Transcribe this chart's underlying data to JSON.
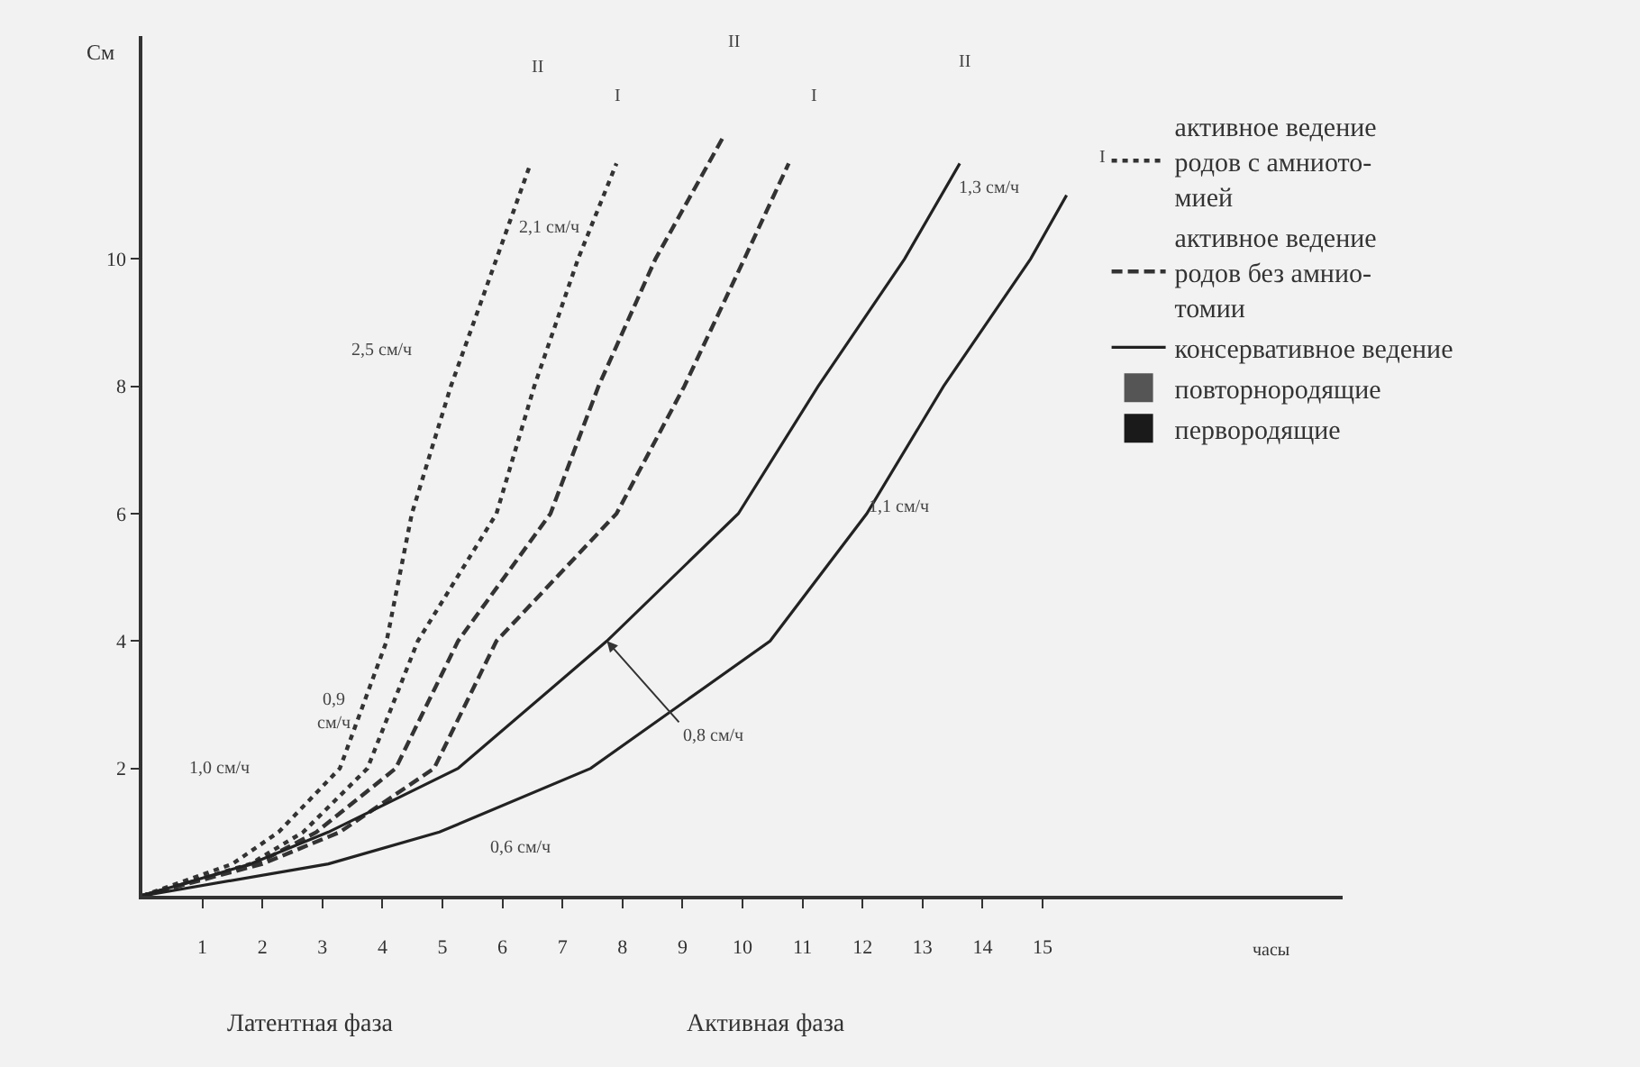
{
  "chart_data": {
    "type": "line",
    "xlabel": "часы",
    "ylabel": "См",
    "xlim": [
      0,
      20
    ],
    "ylim": [
      0,
      13.5
    ],
    "xticks": [
      1,
      2,
      3,
      4,
      5,
      6,
      7,
      8,
      9,
      10,
      11,
      12,
      13,
      14,
      15
    ],
    "yticks": [
      2,
      4,
      6,
      8,
      10
    ],
    "grid": false,
    "legend": "top right",
    "marker": "none",
    "series": [
      {
        "name": "активное ведение\nродов с амниото-\nмией",
        "color": "#333333",
        "line_style": "dotted",
        "x": [
          0,
          1.5,
          2.27,
          3.29,
          4.07,
          4.49,
          5.14,
          5.9,
          6.45
        ],
        "values": [
          0,
          0.5,
          1,
          2,
          4,
          6,
          8,
          10,
          11.45
        ]
      },
      {
        "color": "#333333",
        "line_style": "dotted",
        "x": [
          0,
          1.8,
          2.68,
          3.75,
          4.59,
          5.9,
          6.53,
          7.26,
          7.9
        ],
        "values": [
          0,
          0.5,
          1,
          2,
          4,
          6,
          8,
          10,
          11.5
        ]
      },
      {
        "name": "активное ведение\nродов без амнио-\nтомии",
        "color": "#333333",
        "line_style": "dashed",
        "x": [
          0,
          1.9,
          2.9,
          4.22,
          5.26,
          6.8,
          7.6,
          8.55,
          9.67
        ],
        "values": [
          0,
          0.5,
          1,
          2,
          4,
          6,
          8,
          10,
          11.9
        ]
      },
      {
        "color": "#333333",
        "line_style": "dashed",
        "x": [
          0,
          2.0,
          3.29,
          4.86,
          5.9,
          7.9,
          9.03,
          10.03,
          10.77
        ],
        "values": [
          0,
          0.5,
          1,
          2,
          4,
          6,
          8,
          10,
          11.5
        ]
      },
      {
        "name": "консервативное ведение",
        "color": "#222222",
        "line_style": "solid",
        "x": [
          0,
          1.8,
          3.1,
          5.26,
          7.74,
          9.93,
          11.26,
          12.7,
          13.62
        ],
        "values": [
          0,
          0.5,
          1,
          2,
          4,
          6,
          8,
          10,
          11.5
        ]
      },
      {
        "color": "#222222",
        "line_style": "solid",
        "x": [
          0,
          3.1,
          4.95,
          7.47,
          10.46,
          12.07,
          13.35,
          14.8,
          15.4
        ],
        "values": [
          0,
          0.5,
          1,
          2,
          4,
          6,
          8,
          10,
          11.0
        ]
      },
      {
        "name": "повторнородящие",
        "type": "scatter",
        "marker": "square",
        "color": "#555555"
      },
      {
        "name": "первородящие",
        "type": "scatter",
        "marker": "square",
        "color": "#1a1a1a"
      }
    ],
    "annotations": [
      "2,5 см/ч",
      "2,1 см/ч",
      "1,3 см/ч",
      "1,1 см/ч",
      {
        "text": "0,8 см/ч",
        "x": 7.74,
        "y": 4
      },
      "0,6 см/ч",
      "1,0 см/ч",
      "0,9\nсм/ч",
      "II",
      "I",
      "II",
      "I",
      "II",
      "I",
      "Латентная фаза",
      "Активная фаза"
    ]
  }
}
